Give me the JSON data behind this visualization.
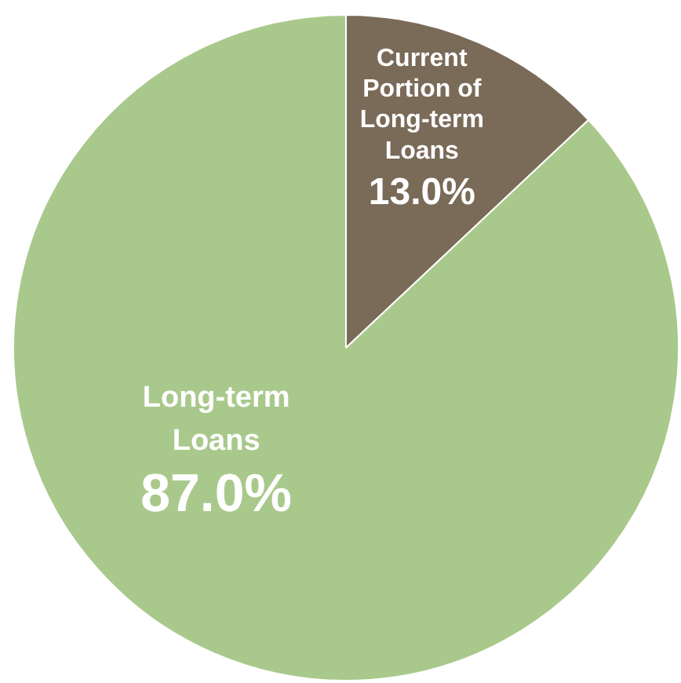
{
  "chart_data": {
    "type": "pie",
    "categories": [
      "Current Portion of Long-term Loans",
      "Long-term Loans"
    ],
    "values": [
      13.0,
      87.0
    ],
    "colors": [
      "#7a6a58",
      "#a9c98c"
    ],
    "value_labels": [
      "13.0%",
      "87.0%"
    ]
  }
}
